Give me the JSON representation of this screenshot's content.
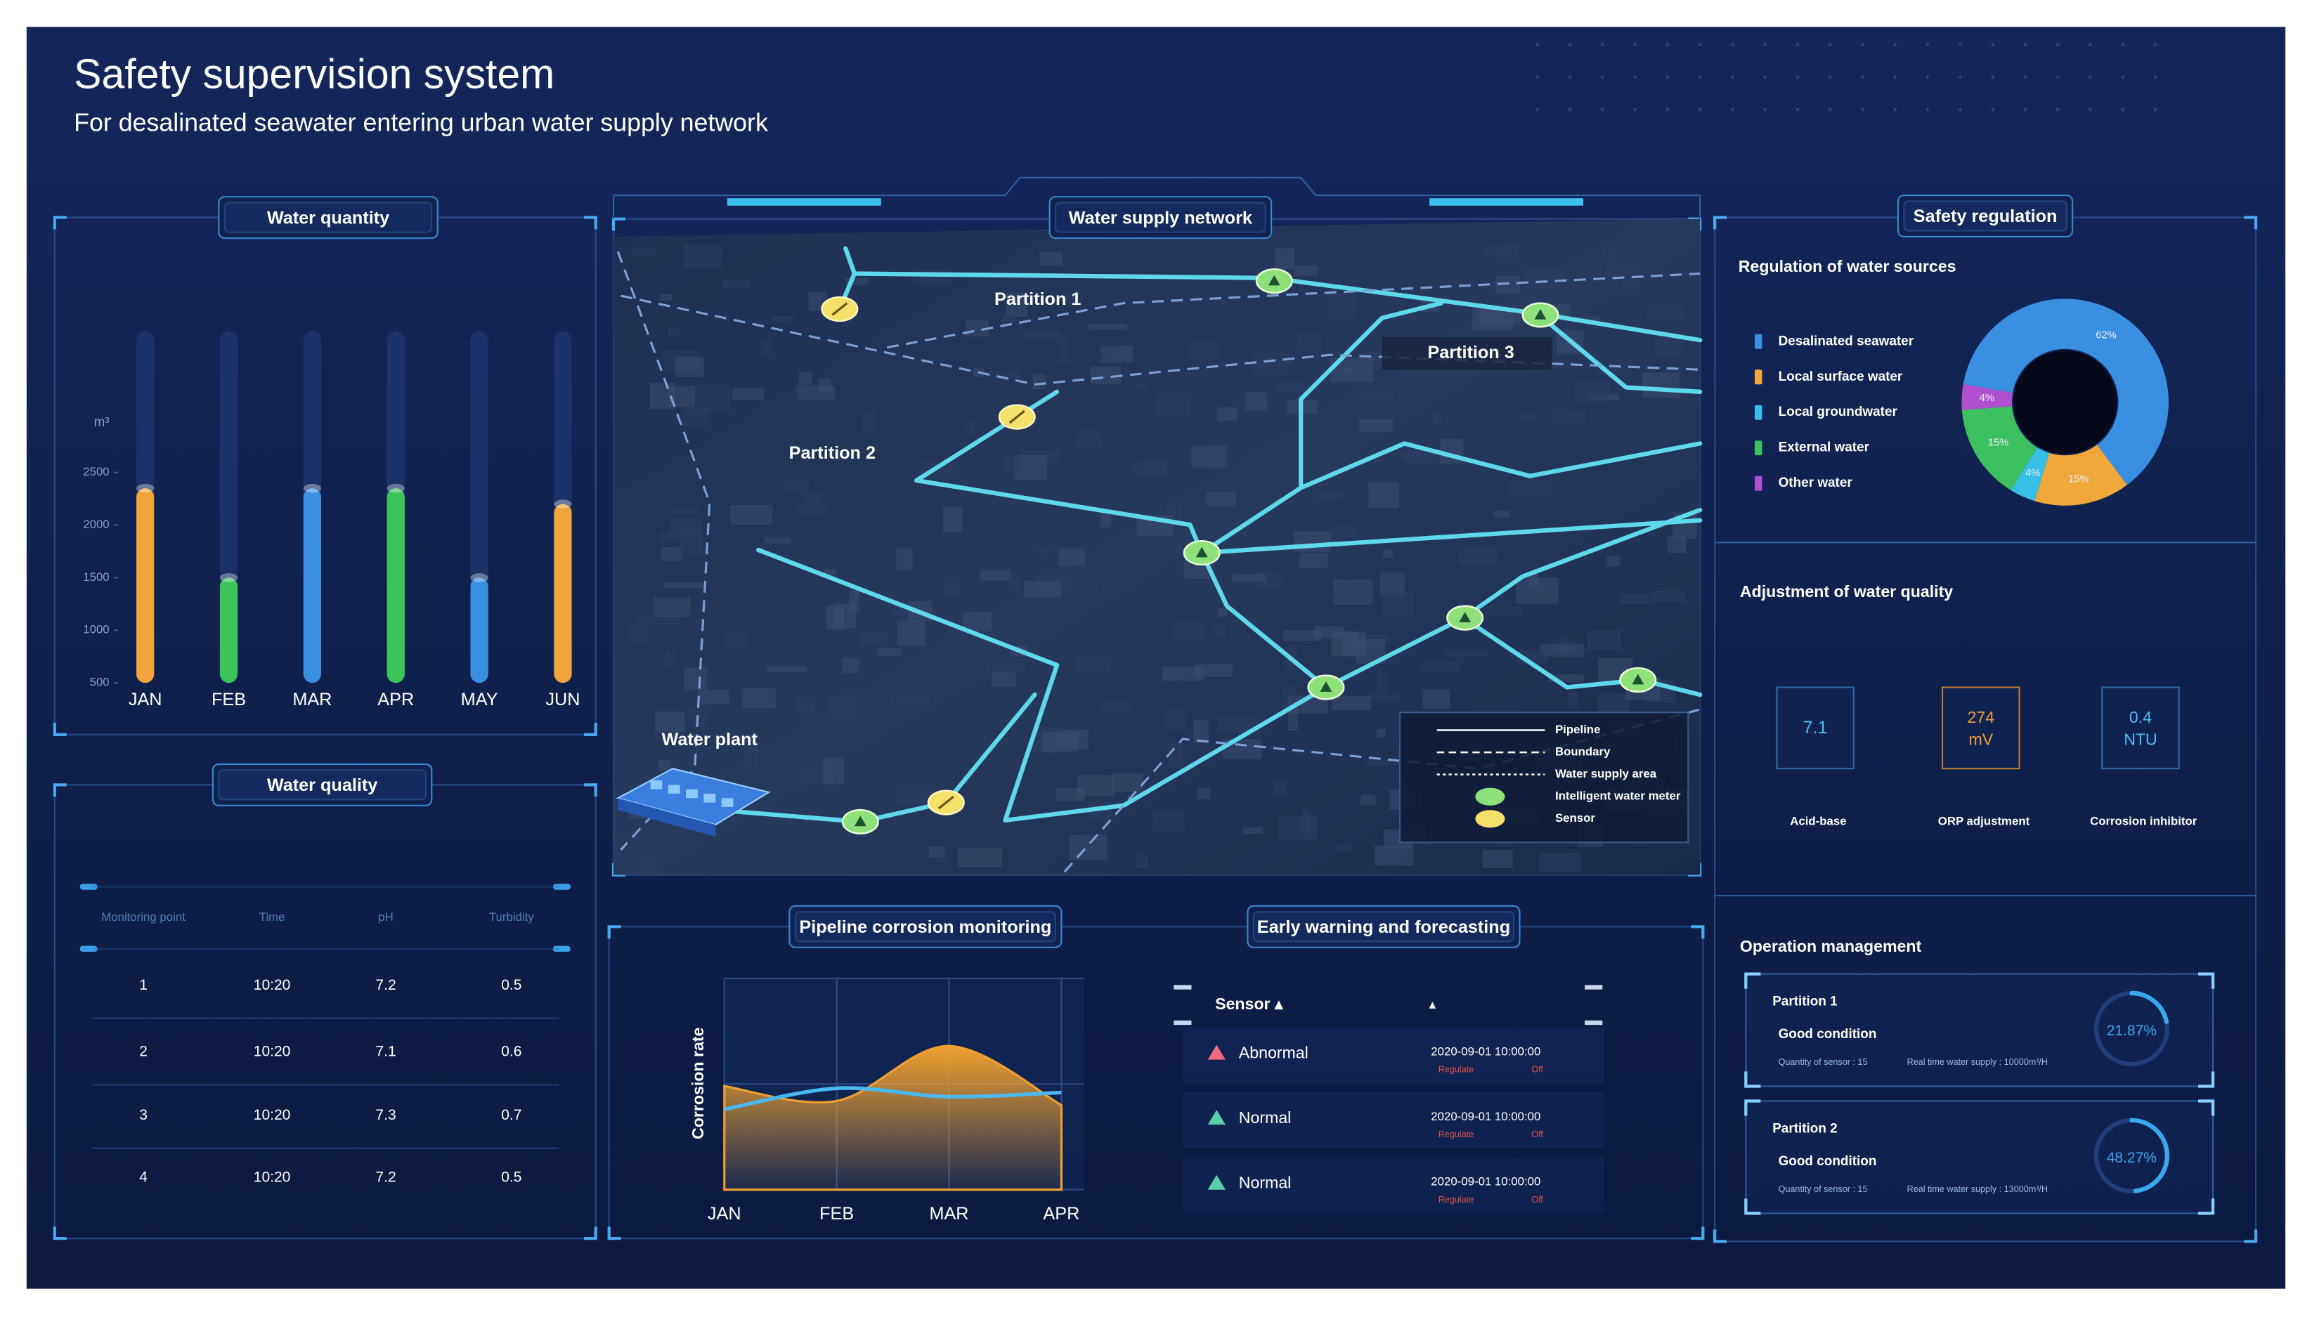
{
  "header": {
    "title": "Safety supervision system",
    "subtitle": "For desalinated seawater entering urban water supply network"
  },
  "water_quantity": {
    "type": "bar",
    "title": "Water quantity",
    "unit": "m³",
    "categories": [
      "JAN",
      "FEB",
      "MAR",
      "APR",
      "MAY",
      "JUN"
    ],
    "values": [
      2350,
      1500,
      2350,
      2350,
      1500,
      2200
    ],
    "colors": [
      "#f0a53a",
      "#3cc45a",
      "#3a8fe0",
      "#3cc45a",
      "#3a8fe0",
      "#f0a53a"
    ],
    "ylim": [
      500,
      3000
    ],
    "yticks": [
      500,
      1000,
      1500,
      2000,
      2500
    ]
  },
  "water_quality": {
    "title": "Water quality",
    "columns": [
      "Monitoring point",
      "Time",
      "pH",
      "Turbidity"
    ],
    "rows": [
      [
        "1",
        "10:20",
        "7.2",
        "0.5"
      ],
      [
        "2",
        "10:20",
        "7.1",
        "0.6"
      ],
      [
        "3",
        "10:20",
        "7.3",
        "0.7"
      ],
      [
        "4",
        "10:20",
        "7.2",
        "0.5"
      ]
    ]
  },
  "water_supply_network": {
    "title": "Water supply network",
    "areas": [
      "Partition 1",
      "Partition 2",
      "Partition 3"
    ],
    "plant": "Water plant",
    "legend": [
      "Pipeline",
      "Boundary",
      "Water supply area",
      "Intelligent water meter",
      "Sensor"
    ]
  },
  "pipeline_corrosion": {
    "type": "area",
    "title": "Pipeline corrosion monitoring",
    "y_label": "Corrosion rate",
    "categories": [
      "JAN",
      "FEB",
      "MAR",
      "APR"
    ],
    "ylim": [
      0,
      100
    ],
    "series": [
      {
        "color": "#f0a030",
        "values": [
          49,
          42,
          68,
          40
        ]
      },
      {
        "color": "#4ab8f0",
        "values": [
          38,
          48,
          44,
          46
        ]
      }
    ]
  },
  "early_warning": {
    "title": "Early warning and forecasting",
    "header": [
      "Sensor ▴",
      "▴"
    ],
    "rows": [
      {
        "status": "Abnormal",
        "time": "2020-09-01 10:00:00",
        "action": "Regulate",
        "state": "Off"
      },
      {
        "status": "Normal",
        "time": "2020-09-01 10:00:00",
        "action": "Regulate",
        "state": "Off"
      },
      {
        "status": "Normal",
        "time": "2020-09-01 10:00:00",
        "action": "Regulate",
        "state": "Off"
      }
    ]
  },
  "safety_regulation": {
    "title": "Safety regulation",
    "sources": {
      "type": "donut",
      "title": "Regulation of water sources",
      "categories": [
        "Desalinated seawater",
        "Local surface water",
        "Local groundwater",
        "External water",
        "Other water"
      ],
      "values": [
        62,
        15,
        4,
        15,
        4
      ],
      "value_labels": [
        "62%",
        "15%",
        "4%",
        "15%",
        "4%"
      ],
      "colors": [
        "#3a8fe0",
        "#f0a83a",
        "#36c0e8",
        "#3cc060",
        "#b050d0"
      ]
    },
    "quality_adjustment": {
      "title": "Adjustment of water quality",
      "items": [
        {
          "value": "7.1",
          "label": "Acid-base"
        },
        {
          "value": "274",
          "unit": "mV",
          "label": "ORP adjustment"
        },
        {
          "value": "0.4",
          "unit": "NTU",
          "label": "Corrosion inhibitor"
        }
      ]
    },
    "operation": {
      "title": "Operation management",
      "partitions": [
        {
          "name": "Partition 1",
          "condition": "Good condition",
          "sensors": "Quantity of sensor : 15",
          "supply": "Real time water supply : 10000m³/H",
          "rate": 21.87,
          "rate_label": "21.87%"
        },
        {
          "name": "Partition 2",
          "condition": "Good condition",
          "sensors": "Quantity of sensor : 15",
          "supply": "Real time water supply : 13000m³/H",
          "rate": 48.27,
          "rate_label": "48.27%"
        }
      ]
    }
  }
}
